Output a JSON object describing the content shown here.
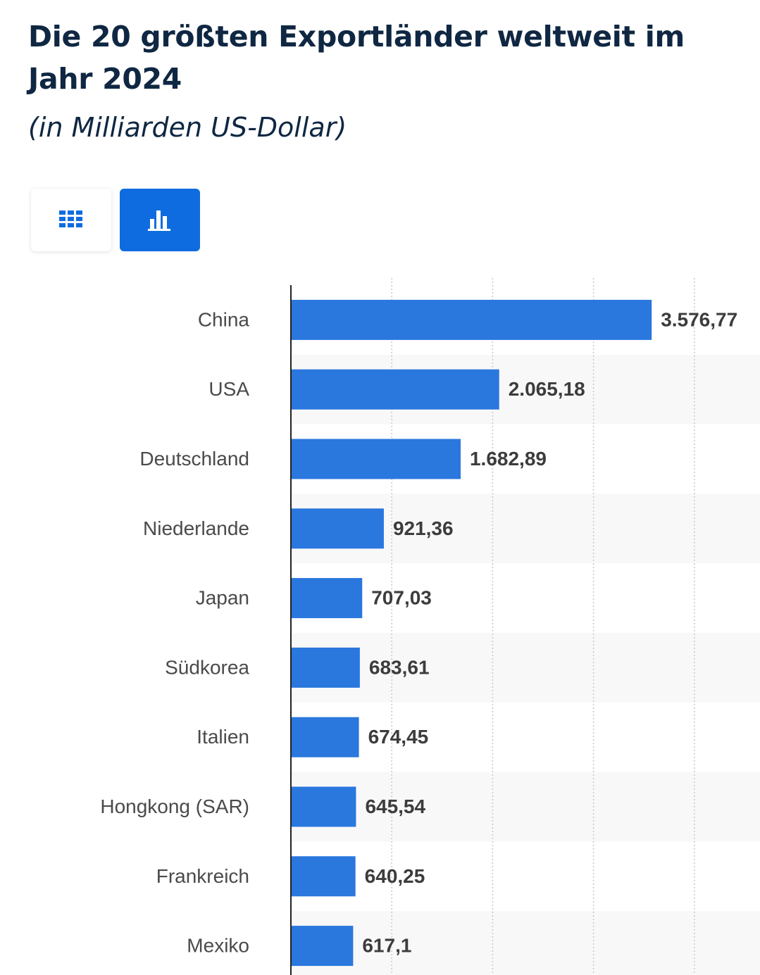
{
  "header": {
    "title": "Die 20 größten Exportländer weltweit im Jahr 2024",
    "subtitle": "(in Milliarden US-Dollar)"
  },
  "view_toggle": {
    "table_icon": "grid-table-icon",
    "chart_icon": "bar-chart-icon",
    "active": "chart",
    "active_color": "#0f6ce0"
  },
  "chart_data": {
    "type": "bar",
    "orientation": "horizontal",
    "title": "Die 20 größten Exportländer weltweit im Jahr 2024",
    "subtitle": "(in Milliarden US-Dollar)",
    "xlabel": "",
    "ylabel": "",
    "unit": "Milliarden US-Dollar",
    "xlim": [
      0,
      4000
    ],
    "grid": true,
    "bar_color": "#2a77de",
    "categories": [
      "China",
      "USA",
      "Deutschland",
      "Niederlande",
      "Japan",
      "Südkorea",
      "Italien",
      "Hongkong (SAR)",
      "Frankreich",
      "Mexiko"
    ],
    "values": [
      3576.77,
      2065.18,
      1682.89,
      921.36,
      707.03,
      683.61,
      674.45,
      645.54,
      640.25,
      617.1
    ],
    "value_labels": [
      "3.576,77",
      "2.065,18",
      "1.682,89",
      "921,36",
      "707,03",
      "683,61",
      "674,45",
      "645,54",
      "640,25",
      "617,1"
    ]
  }
}
